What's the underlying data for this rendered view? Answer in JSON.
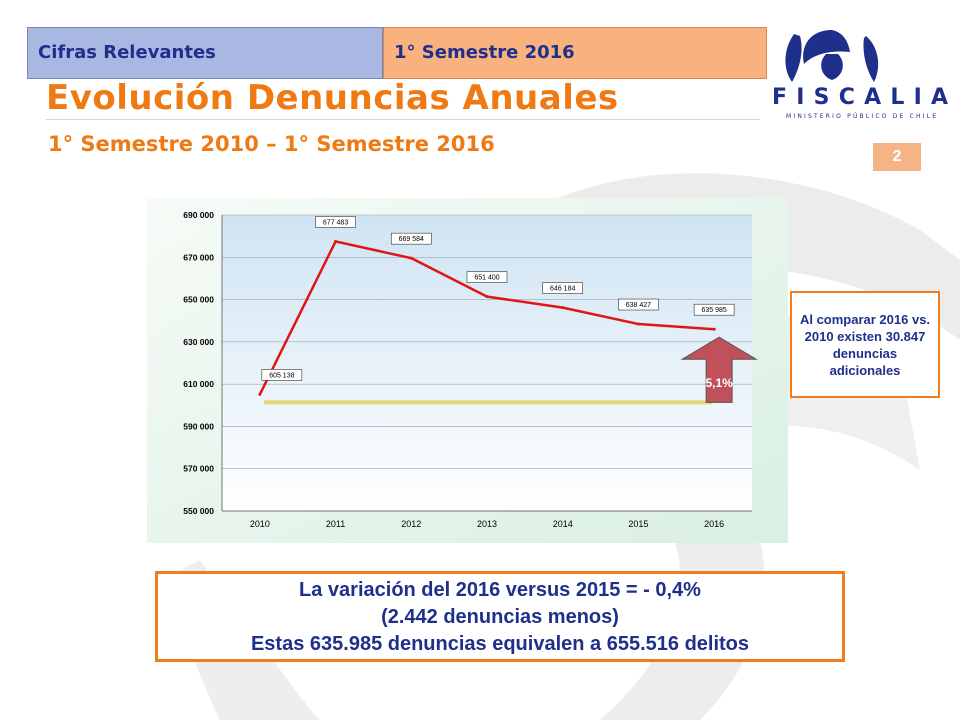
{
  "header": {
    "left_label": "Cifras Relevantes",
    "right_label": "1° Semestre 2016"
  },
  "logo": {
    "name": "FISCALIA",
    "tagline": "MINISTERIO PÚBLICO DE CHILE"
  },
  "title": "Evolución Denuncias Anuales",
  "subtitle": "1° Semestre 2010 – 1° Semestre 2016",
  "page_number": "2",
  "colors": {
    "accent": "#ef7a14",
    "header_blue": "#a9b8e2",
    "header_orange": "#f9b27e",
    "text_blue": "#1f2f8c",
    "line_red": "#e01515",
    "arrow_fill": "#c0505a"
  },
  "chart_data": {
    "type": "line",
    "categories": [
      "2010",
      "2011",
      "2012",
      "2013",
      "2014",
      "2015",
      "2016"
    ],
    "values": [
      605138,
      677483,
      669584,
      651400,
      646184,
      638427,
      635985
    ],
    "data_labels": [
      "605 138",
      "677 483",
      "669 584",
      "651 400",
      "646 184",
      "638 427",
      "635 985"
    ],
    "y_ticks": [
      "550 000",
      "570 000",
      "590 000",
      "610 000",
      "630 000",
      "650 000",
      "670 000",
      "690 000"
    ],
    "ylim": [
      550000,
      690000
    ],
    "y_tick_values": [
      550000,
      570000,
      590000,
      610000,
      630000,
      650000,
      670000,
      690000
    ],
    "baseline_value": 605138,
    "growth_label": "5,1%",
    "grid": true
  },
  "note": "Al comparar 2016 vs. 2010 existen 30.847 denuncias adicionales",
  "summary": {
    "line1": "La variación del 2016 versus 2015 = - 0,4%",
    "line2": "(2.442 denuncias menos)",
    "line3": "Estas 635.985 denuncias equivalen a 655.516 delitos"
  }
}
